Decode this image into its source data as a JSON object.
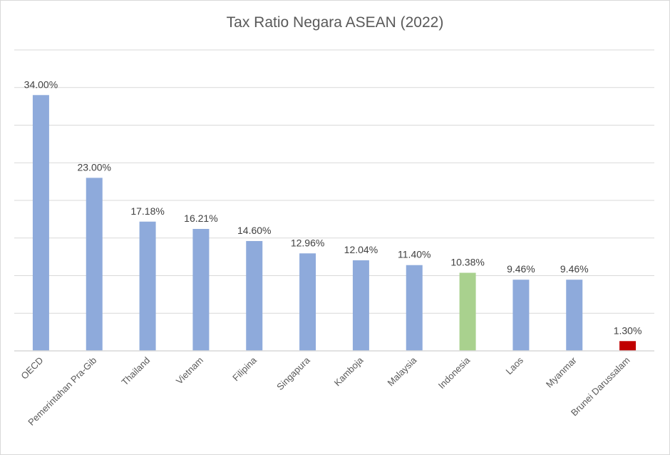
{
  "chart_data": {
    "type": "bar",
    "title": "Tax Ratio Negara ASEAN (2022)",
    "xlabel": "",
    "ylabel": "",
    "ylim": [
      0,
      40
    ],
    "grid": true,
    "grid_step": 5,
    "categories": [
      "OECD",
      "Pemerintahan Pra-Gib",
      "Thailand",
      "Vietnam",
      "Filipina",
      "Singapura",
      "Kamboja",
      "Malaysia",
      "Indonesia",
      "Laos",
      "Myanmar",
      "Brunei Darussalam"
    ],
    "values": [
      34.0,
      23.0,
      17.18,
      16.21,
      14.6,
      12.96,
      12.04,
      11.4,
      10.38,
      9.46,
      9.46,
      1.3
    ],
    "data_labels": [
      "34.00%",
      "23.00%",
      "17.18%",
      "16.21%",
      "14.60%",
      "12.96%",
      "12.04%",
      "11.40%",
      "10.38%",
      "9.46%",
      "9.46%",
      "1.30%"
    ],
    "colors": [
      "#8eaadb",
      "#8eaadb",
      "#8eaadb",
      "#8eaadb",
      "#8eaadb",
      "#8eaadb",
      "#8eaadb",
      "#8eaadb",
      "#a9d18e",
      "#8eaadb",
      "#8eaadb",
      "#c00000"
    ]
  }
}
